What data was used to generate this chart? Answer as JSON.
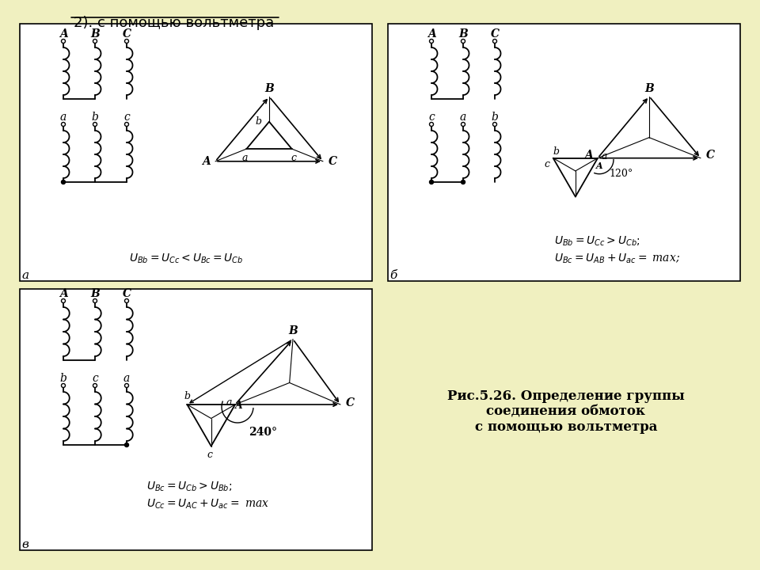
{
  "title": "2). с помощью вольтметра",
  "bg_color": "#f0f0c0",
  "panel_bg": "#ffffff",
  "fig_caption": "Рис.5.26. Определение группы\nсоединения обмоток\nс помощью вольтметра",
  "eq_a": "$U_{Bb} = U_{Cc} < U_{Bc} = U_{Cb}$",
  "eq_b1": "$U_{Bb} = U_{Cc} > U_{Cb};$",
  "eq_b2": "$U_{Bc} = U_{AB} + U_{ac} = $ max;",
  "eq_v1": "$U_{Bc} = U_{Cb} > U_{Bb};$",
  "eq_v2": "$U_{Cc} = U_{AC} + U_{ac} = $ max"
}
